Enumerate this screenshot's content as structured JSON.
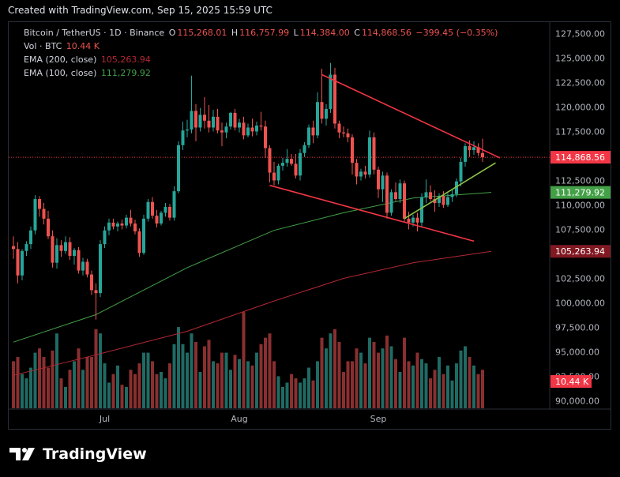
{
  "header": {
    "created": "Created with TradingView.com, Sep 15, 2025 15:59 UTC"
  },
  "legend": {
    "symbol": "Bitcoin / TetherUS · 1D · Binance",
    "o_label": "O",
    "o": "115,268.01",
    "h_label": "H",
    "h": "116,757.99",
    "l_label": "L",
    "l": "114,384.00",
    "c_label": "C",
    "c": "114,868.56",
    "change": "−399.45 (−0.35%)",
    "vol_label": "Vol · BTC",
    "vol": "10.44 K",
    "ema200_label": "EMA (200, close)",
    "ema200": "105,263.94",
    "ema100_label": "EMA (100, close)",
    "ema100": "111,279.92"
  },
  "footer": {
    "brand": "TradingView"
  },
  "colors": {
    "up": "#26a69a",
    "down": "#ef5350",
    "up_vol": "#1f6b64",
    "down_vol": "#8a2f30",
    "ema200": "#b22833",
    "ema100": "#43a047",
    "trend_red": "#f23645",
    "trend_green": "#8bc34a",
    "badge_price": "#f23645",
    "badge_ema100": "#43a047",
    "badge_ema200": "#801922"
  },
  "chart_data": {
    "type": "candlestick",
    "y_ticks": [
      "127,500.00",
      "125,000.00",
      "122,500.00",
      "120,000.00",
      "117,500.00",
      "115,000.00",
      "112,500.00",
      "110,000.00",
      "107,500.00",
      "105,000.00",
      "102,500.00",
      "100,000.00",
      "97,500.00",
      "95,000.00",
      "92,500.00",
      "90,000.00"
    ],
    "x_ticks": [
      "Jul",
      "Aug",
      "Sep"
    ],
    "ylim": [
      89000,
      128500
    ],
    "badges": {
      "price": "114,868.56",
      "ema100": "111,279.92",
      "ema200": "105,263.94",
      "volume": "10.44 K"
    },
    "candles": [
      {
        "o": 105800,
        "h": 106800,
        "l": 104500,
        "c": 105500,
        "v": 22
      },
      {
        "o": 105500,
        "h": 106200,
        "l": 102000,
        "c": 102800,
        "v": 24
      },
      {
        "o": 102800,
        "h": 105500,
        "l": 102300,
        "c": 105300,
        "v": 16
      },
      {
        "o": 105300,
        "h": 106300,
        "l": 104800,
        "c": 106000,
        "v": 14
      },
      {
        "o": 106000,
        "h": 107800,
        "l": 105500,
        "c": 107400,
        "v": 19
      },
      {
        "o": 107400,
        "h": 111000,
        "l": 107000,
        "c": 110600,
        "v": 26
      },
      {
        "o": 110600,
        "h": 110900,
        "l": 108800,
        "c": 109600,
        "v": 28
      },
      {
        "o": 109600,
        "h": 110200,
        "l": 108000,
        "c": 108600,
        "v": 24
      },
      {
        "o": 108600,
        "h": 109400,
        "l": 106500,
        "c": 106800,
        "v": 19
      },
      {
        "o": 106800,
        "h": 107400,
        "l": 103600,
        "c": 104100,
        "v": 27
      },
      {
        "o": 104100,
        "h": 106600,
        "l": 103500,
        "c": 105900,
        "v": 35
      },
      {
        "o": 105900,
        "h": 106400,
        "l": 104700,
        "c": 105300,
        "v": 14
      },
      {
        "o": 105300,
        "h": 106800,
        "l": 105000,
        "c": 106200,
        "v": 10
      },
      {
        "o": 106200,
        "h": 106700,
        "l": 104400,
        "c": 104800,
        "v": 18
      },
      {
        "o": 104800,
        "h": 105600,
        "l": 103900,
        "c": 105400,
        "v": 22
      },
      {
        "o": 105400,
        "h": 105700,
        "l": 103000,
        "c": 103300,
        "v": 28
      },
      {
        "o": 103300,
        "h": 104600,
        "l": 102800,
        "c": 104200,
        "v": 18
      },
      {
        "o": 104200,
        "h": 104500,
        "l": 102600,
        "c": 102900,
        "v": 24
      },
      {
        "o": 102900,
        "h": 103300,
        "l": 100800,
        "c": 101300,
        "v": 24
      },
      {
        "o": 101300,
        "h": 102000,
        "l": 98300,
        "c": 101000,
        "v": 37
      },
      {
        "o": 101000,
        "h": 106400,
        "l": 100600,
        "c": 106000,
        "v": 35
      },
      {
        "o": 106000,
        "h": 107800,
        "l": 105600,
        "c": 107400,
        "v": 21
      },
      {
        "o": 107400,
        "h": 108600,
        "l": 106900,
        "c": 108200,
        "v": 12
      },
      {
        "o": 108200,
        "h": 108600,
        "l": 107500,
        "c": 107800,
        "v": 16
      },
      {
        "o": 107800,
        "h": 108300,
        "l": 107300,
        "c": 108100,
        "v": 20
      },
      {
        "o": 108100,
        "h": 108500,
        "l": 107500,
        "c": 107900,
        "v": 11
      },
      {
        "o": 107900,
        "h": 109000,
        "l": 107600,
        "c": 108700,
        "v": 10
      },
      {
        "o": 108700,
        "h": 109500,
        "l": 107800,
        "c": 108100,
        "v": 18
      },
      {
        "o": 108100,
        "h": 108500,
        "l": 107000,
        "c": 107300,
        "v": 16
      },
      {
        "o": 107300,
        "h": 107600,
        "l": 104700,
        "c": 105100,
        "v": 21
      },
      {
        "o": 105100,
        "h": 109000,
        "l": 104900,
        "c": 108600,
        "v": 26
      },
      {
        "o": 108600,
        "h": 110600,
        "l": 108300,
        "c": 110300,
        "v": 26
      },
      {
        "o": 110300,
        "h": 110800,
        "l": 108600,
        "c": 108900,
        "v": 22
      },
      {
        "o": 108900,
        "h": 109500,
        "l": 107700,
        "c": 108100,
        "v": 16
      },
      {
        "o": 108100,
        "h": 109400,
        "l": 107900,
        "c": 109200,
        "v": 17
      },
      {
        "o": 109200,
        "h": 110200,
        "l": 108800,
        "c": 109800,
        "v": 14
      },
      {
        "o": 109800,
        "h": 110100,
        "l": 108400,
        "c": 108700,
        "v": 21
      },
      {
        "o": 108700,
        "h": 111900,
        "l": 108400,
        "c": 111400,
        "v": 30
      },
      {
        "o": 111400,
        "h": 116500,
        "l": 111200,
        "c": 116100,
        "v": 38
      },
      {
        "o": 116100,
        "h": 118500,
        "l": 115600,
        "c": 117600,
        "v": 30
      },
      {
        "o": 117600,
        "h": 118700,
        "l": 116900,
        "c": 117700,
        "v": 26
      },
      {
        "o": 117700,
        "h": 123200,
        "l": 117300,
        "c": 119600,
        "v": 35
      },
      {
        "o": 119600,
        "h": 120300,
        "l": 116500,
        "c": 117900,
        "v": 31
      },
      {
        "o": 117900,
        "h": 119900,
        "l": 117500,
        "c": 119200,
        "v": 17
      },
      {
        "o": 119200,
        "h": 121000,
        "l": 117800,
        "c": 118600,
        "v": 29
      },
      {
        "o": 118600,
        "h": 120200,
        "l": 117400,
        "c": 117900,
        "v": 32
      },
      {
        "o": 117900,
        "h": 119700,
        "l": 117500,
        "c": 119000,
        "v": 22
      },
      {
        "o": 119000,
        "h": 119800,
        "l": 117300,
        "c": 117600,
        "v": 21
      },
      {
        "o": 117600,
        "h": 118400,
        "l": 116000,
        "c": 117400,
        "v": 26
      },
      {
        "o": 117400,
        "h": 118400,
        "l": 116800,
        "c": 118000,
        "v": 26
      },
      {
        "o": 118000,
        "h": 119500,
        "l": 117700,
        "c": 119400,
        "v": 18
      },
      {
        "o": 119400,
        "h": 119800,
        "l": 117600,
        "c": 117900,
        "v": 25
      },
      {
        "o": 117900,
        "h": 118800,
        "l": 117400,
        "c": 118400,
        "v": 23
      },
      {
        "o": 118400,
        "h": 119000,
        "l": 116700,
        "c": 117100,
        "v": 45
      },
      {
        "o": 117100,
        "h": 118300,
        "l": 116900,
        "c": 117900,
        "v": 22
      },
      {
        "o": 117900,
        "h": 118800,
        "l": 117000,
        "c": 117500,
        "v": 20
      },
      {
        "o": 117500,
        "h": 118500,
        "l": 117100,
        "c": 118100,
        "v": 26
      },
      {
        "o": 118100,
        "h": 119500,
        "l": 117600,
        "c": 118000,
        "v": 30
      },
      {
        "o": 118000,
        "h": 118600,
        "l": 114800,
        "c": 115800,
        "v": 33
      },
      {
        "o": 115800,
        "h": 116100,
        "l": 112300,
        "c": 113300,
        "v": 35
      },
      {
        "o": 113300,
        "h": 114400,
        "l": 112000,
        "c": 112500,
        "v": 22
      },
      {
        "o": 112500,
        "h": 114200,
        "l": 112100,
        "c": 114000,
        "v": 15
      },
      {
        "o": 114000,
        "h": 114800,
        "l": 113500,
        "c": 114300,
        "v": 10
      },
      {
        "o": 114300,
        "h": 115700,
        "l": 113900,
        "c": 114700,
        "v": 12
      },
      {
        "o": 114700,
        "h": 115200,
        "l": 114000,
        "c": 114200,
        "v": 16
      },
      {
        "o": 114200,
        "h": 115200,
        "l": 112700,
        "c": 113000,
        "v": 14
      },
      {
        "o": 113000,
        "h": 115700,
        "l": 112500,
        "c": 115300,
        "v": 12
      },
      {
        "o": 115300,
        "h": 116400,
        "l": 114900,
        "c": 116100,
        "v": 14
      },
      {
        "o": 116100,
        "h": 118200,
        "l": 115800,
        "c": 117900,
        "v": 19
      },
      {
        "o": 117900,
        "h": 118600,
        "l": 116300,
        "c": 117100,
        "v": 13
      },
      {
        "o": 117100,
        "h": 121500,
        "l": 116800,
        "c": 120500,
        "v": 22
      },
      {
        "o": 120500,
        "h": 123900,
        "l": 118300,
        "c": 118800,
        "v": 33
      },
      {
        "o": 118800,
        "h": 120300,
        "l": 118100,
        "c": 119800,
        "v": 28
      },
      {
        "o": 119800,
        "h": 124500,
        "l": 119400,
        "c": 123300,
        "v": 35
      },
      {
        "o": 123300,
        "h": 124000,
        "l": 117800,
        "c": 118300,
        "v": 37
      },
      {
        "o": 118300,
        "h": 118600,
        "l": 116800,
        "c": 117400,
        "v": 31
      },
      {
        "o": 117400,
        "h": 118000,
        "l": 116900,
        "c": 117300,
        "v": 17
      },
      {
        "o": 117300,
        "h": 117800,
        "l": 116400,
        "c": 116900,
        "v": 22
      },
      {
        "o": 116900,
        "h": 117200,
        "l": 113100,
        "c": 114300,
        "v": 22
      },
      {
        "o": 114300,
        "h": 114700,
        "l": 112100,
        "c": 112900,
        "v": 28
      },
      {
        "o": 112900,
        "h": 113700,
        "l": 112500,
        "c": 113400,
        "v": 26
      },
      {
        "o": 113400,
        "h": 114000,
        "l": 112700,
        "c": 113100,
        "v": 21
      },
      {
        "o": 113100,
        "h": 117600,
        "l": 112800,
        "c": 116900,
        "v": 33
      },
      {
        "o": 116900,
        "h": 117400,
        "l": 113100,
        "c": 113600,
        "v": 31
      },
      {
        "o": 113600,
        "h": 113900,
        "l": 110700,
        "c": 111600,
        "v": 26
      },
      {
        "o": 111600,
        "h": 113400,
        "l": 110300,
        "c": 113000,
        "v": 28
      },
      {
        "o": 113000,
        "h": 113300,
        "l": 108600,
        "c": 109200,
        "v": 34
      },
      {
        "o": 109200,
        "h": 111600,
        "l": 108900,
        "c": 111300,
        "v": 29
      },
      {
        "o": 111300,
        "h": 112300,
        "l": 110400,
        "c": 110600,
        "v": 23
      },
      {
        "o": 110600,
        "h": 112600,
        "l": 110200,
        "c": 112200,
        "v": 17
      },
      {
        "o": 112200,
        "h": 112500,
        "l": 108300,
        "c": 108600,
        "v": 33
      },
      {
        "o": 108600,
        "h": 109300,
        "l": 107500,
        "c": 108200,
        "v": 22
      },
      {
        "o": 108200,
        "h": 109000,
        "l": 107800,
        "c": 108700,
        "v": 20
      },
      {
        "o": 108700,
        "h": 109200,
        "l": 107300,
        "c": 108200,
        "v": 26
      },
      {
        "o": 108200,
        "h": 111200,
        "l": 107800,
        "c": 110800,
        "v": 23
      },
      {
        "o": 110800,
        "h": 112600,
        "l": 110200,
        "c": 111300,
        "v": 21
      },
      {
        "o": 111300,
        "h": 112000,
        "l": 110400,
        "c": 110600,
        "v": 14
      },
      {
        "o": 110600,
        "h": 111500,
        "l": 109300,
        "c": 110200,
        "v": 18
      },
      {
        "o": 110200,
        "h": 111200,
        "l": 109800,
        "c": 110900,
        "v": 24
      },
      {
        "o": 110900,
        "h": 111400,
        "l": 109700,
        "c": 110000,
        "v": 16
      },
      {
        "o": 110000,
        "h": 111200,
        "l": 109800,
        "c": 110800,
        "v": 20
      },
      {
        "o": 110800,
        "h": 111600,
        "l": 110300,
        "c": 111100,
        "v": 13
      },
      {
        "o": 111100,
        "h": 112700,
        "l": 110800,
        "c": 112400,
        "v": 21
      },
      {
        "o": 112400,
        "h": 114800,
        "l": 111900,
        "c": 114400,
        "v": 27
      },
      {
        "o": 114400,
        "h": 116300,
        "l": 113900,
        "c": 116000,
        "v": 29
      },
      {
        "o": 116000,
        "h": 116600,
        "l": 114900,
        "c": 115600,
        "v": 24
      },
      {
        "o": 115600,
        "h": 116500,
        "l": 115100,
        "c": 115900,
        "v": 20
      },
      {
        "o": 115900,
        "h": 116300,
        "l": 115000,
        "c": 115300,
        "v": 16
      },
      {
        "o": 115300,
        "h": 116760,
        "l": 114384,
        "c": 114869,
        "v": 18
      }
    ],
    "ema100": [
      [
        0,
        96000
      ],
      [
        19,
        98800
      ],
      [
        40,
        103600
      ],
      [
        60,
        107400
      ],
      [
        76,
        109200
      ],
      [
        92,
        110700
      ],
      [
        110,
        111280
      ]
    ],
    "ema200": [
      [
        0,
        92600
      ],
      [
        19,
        94700
      ],
      [
        40,
        97100
      ],
      [
        60,
        100200
      ],
      [
        76,
        102500
      ],
      [
        92,
        104100
      ],
      [
        110,
        105264
      ]
    ],
    "trendlines": [
      {
        "name": "upper",
        "color": "trend_red",
        "points": [
          [
            71,
            123300
          ],
          [
            112,
            114800
          ]
        ]
      },
      {
        "name": "lower",
        "color": "trend_red",
        "points": [
          [
            59,
            112000
          ],
          [
            106,
            106300
          ]
        ]
      },
      {
        "name": "support",
        "color": "trend_green",
        "points": [
          [
            90,
            108600
          ],
          [
            111,
            114300
          ]
        ]
      }
    ]
  }
}
